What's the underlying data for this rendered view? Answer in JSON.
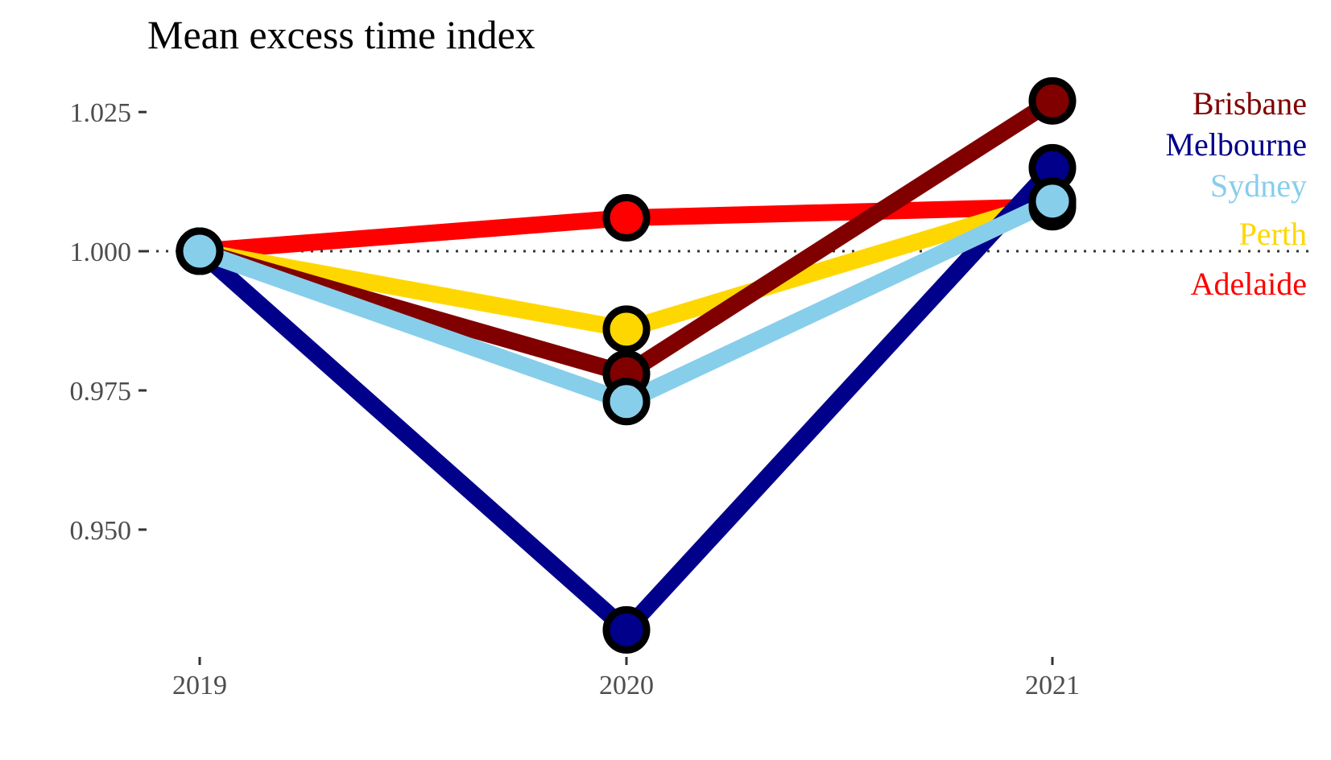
{
  "chart_data": {
    "type": "line",
    "title": "Mean excess time index",
    "xlabel": "",
    "ylabel": "",
    "categories": [
      "2019",
      "2020",
      "2021"
    ],
    "ylim": [
      0.928,
      1.035
    ],
    "yticks": [
      "0.950",
      "0.975",
      "1.000",
      "1.025"
    ],
    "reference_line": 1.0,
    "grid": false,
    "legend": "right, direct labels",
    "series": [
      {
        "name": "Adelaide",
        "color": "#ff0000",
        "values": [
          1.0,
          1.006,
          1.008
        ]
      },
      {
        "name": "Perth",
        "color": "#ffd700",
        "values": [
          1.0,
          0.986,
          1.009
        ]
      },
      {
        "name": "Brisbane",
        "color": "#800000",
        "values": [
          1.0,
          0.978,
          1.027
        ]
      },
      {
        "name": "Melbourne",
        "color": "#00008b",
        "values": [
          1.0,
          0.932,
          1.015
        ]
      },
      {
        "name": "Sydney",
        "color": "#87ceeb",
        "values": [
          1.0,
          0.973,
          1.009
        ]
      }
    ],
    "series_labels_order": [
      "Brisbane",
      "Melbourne",
      "Sydney",
      "Perth",
      "Adelaide"
    ]
  }
}
